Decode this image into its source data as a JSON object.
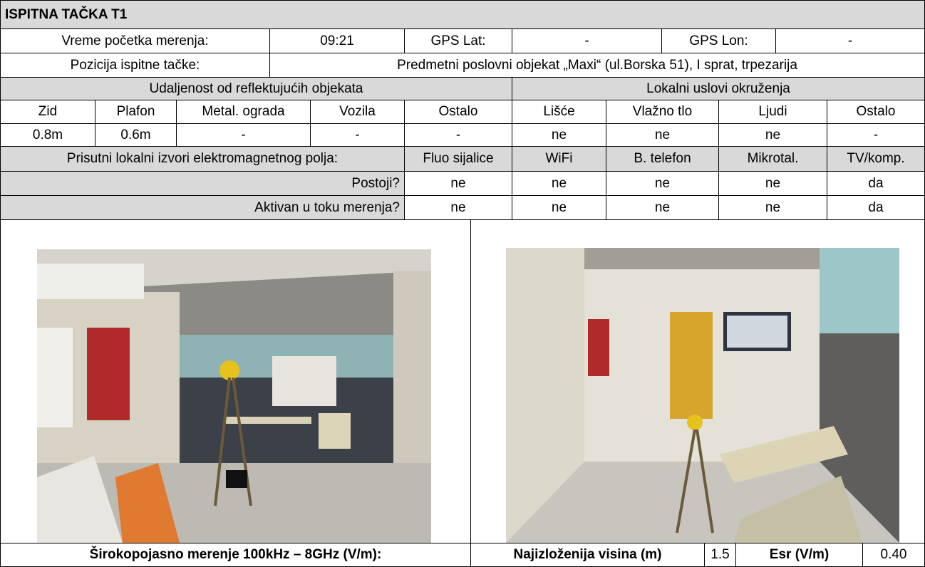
{
  "header": {
    "title": "ISPITNA TAČKA T1"
  },
  "info": {
    "start_time_label": "Vreme početka merenja:",
    "start_time": "09:21",
    "gps_lat_label": "GPS Lat:",
    "gps_lat": "-",
    "gps_lon_label": "GPS Lon:",
    "gps_lon": "-",
    "position_label": "Pozicija ispitne tačke:",
    "position": "Predmetni poslovni objekat „Maxi“  (ul.Borska 51), I sprat, trpezarija"
  },
  "reflecting": {
    "title": "Udaljenost od reflektujućih objekata",
    "columns": [
      "Zid",
      "Plafon",
      "Metal. ograda",
      "Vozila",
      "Ostalo"
    ],
    "values": [
      "0.8m",
      "0.6m",
      "-",
      "-",
      "-"
    ]
  },
  "local_conditions": {
    "title": "Lokalni uslovi okruženja",
    "columns": [
      "Lišće",
      "Vlažno tlo",
      "Ljudi",
      "Ostalo"
    ],
    "values": [
      "ne",
      "ne",
      "ne",
      "-"
    ]
  },
  "em_sources": {
    "title": "Prisutni lokalni izvori elektromagnetnog polja:",
    "columns": [
      "Fluo sijalice",
      "WiFi",
      "B. telefon",
      "Mikrotal.",
      "TV/komp."
    ],
    "rows": [
      {
        "label": "Postoji?",
        "values": [
          "ne",
          "ne",
          "ne",
          "ne",
          "da"
        ]
      },
      {
        "label": "Aktivan u toku merenja?",
        "values": [
          "ne",
          "ne",
          "ne",
          "ne",
          "da"
        ]
      }
    ]
  },
  "footer": {
    "broadband_label": "Širokopojasno merenje 100kHz – 8GHz (V/m):",
    "height_label": "Najizloženija visina (m)",
    "height": "1.5",
    "esr_label": "Esr (V/m)",
    "esr": "0.40"
  }
}
